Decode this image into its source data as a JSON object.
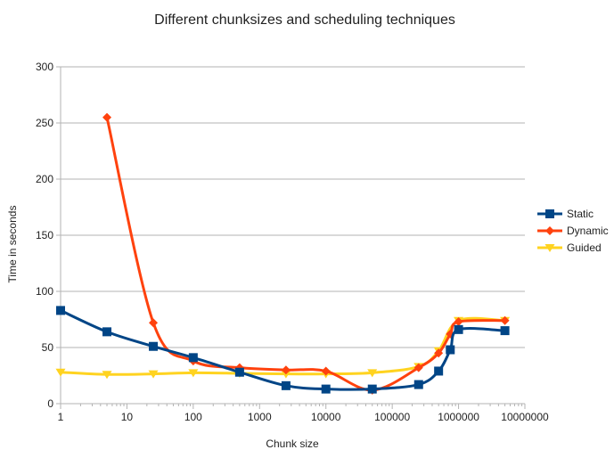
{
  "chart_data": {
    "type": "line",
    "title": "Different chunksizes and scheduling techniques",
    "xlabel": "Chunk size",
    "ylabel": "Time in seconds",
    "xscale": "log",
    "xlim": [
      1,
      10000000
    ],
    "ylim": [
      0,
      300
    ],
    "x_ticks": [
      1,
      10,
      100,
      1000,
      10000,
      100000,
      1000000,
      10000000
    ],
    "x_tick_labels": [
      "1",
      "10",
      "100",
      "1000",
      "10000",
      "100000",
      "1000000",
      "10000000"
    ],
    "y_ticks": [
      0,
      50,
      100,
      150,
      200,
      250,
      300
    ],
    "y_tick_labels": [
      "0",
      "50",
      "100",
      "150",
      "200",
      "250",
      "300"
    ],
    "grid": "horizontal",
    "legend_position": "right",
    "series": [
      {
        "name": "Static",
        "color": "#004586",
        "marker": "square",
        "x": [
          1,
          5,
          25,
          100,
          500,
          2500,
          10000,
          50000,
          250000,
          500000,
          750000,
          1000000,
          5000000
        ],
        "y": [
          83,
          64,
          51,
          41,
          28,
          16,
          13,
          13,
          17,
          29,
          48,
          66,
          65
        ]
      },
      {
        "name": "Dynamic",
        "color": "#ff420e",
        "marker": "diamond",
        "x": [
          5,
          25,
          100,
          500,
          2500,
          10000,
          50000,
          250000,
          500000,
          750000,
          1000000,
          5000000
        ],
        "y": [
          255,
          72,
          38,
          32,
          30,
          29,
          12,
          32,
          45,
          62,
          73,
          74
        ]
      },
      {
        "name": "Guided",
        "color": "#ffd320",
        "marker": "triangle-down",
        "x": [
          1,
          5,
          25,
          100,
          500,
          2500,
          10000,
          50000,
          250000,
          500000,
          1000000,
          5000000
        ],
        "y": [
          28,
          26,
          26.5,
          27.5,
          27,
          26.5,
          26.5,
          27.5,
          33,
          47,
          74,
          74
        ]
      }
    ]
  }
}
